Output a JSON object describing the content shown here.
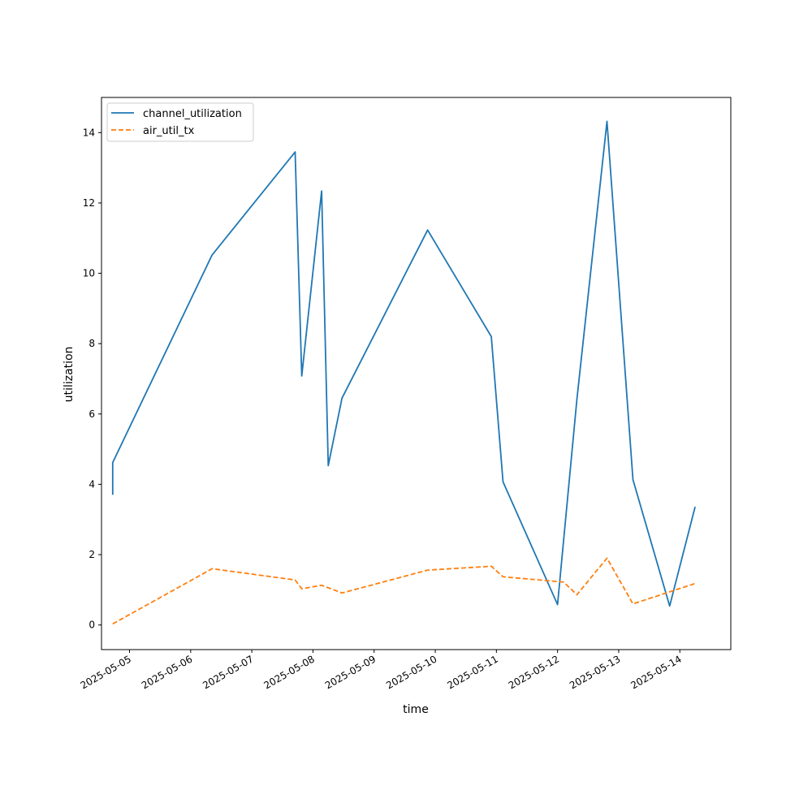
{
  "chart_data": {
    "type": "line",
    "xlabel": "time",
    "ylabel": "utilization",
    "x_tick_labels": [
      "2025-05-05",
      "2025-05-06",
      "2025-05-07",
      "2025-05-08",
      "2025-05-09",
      "2025-05-10",
      "2025-05-11",
      "2025-05-12",
      "2025-05-13",
      "2025-05-14"
    ],
    "y_tick_labels": [
      "0",
      "2",
      "4",
      "6",
      "8",
      "10",
      "12",
      "14"
    ],
    "xlim": [
      "2025-05-04T13:00",
      "2025-05-14T20:00"
    ],
    "ylim": [
      -0.7,
      15.0
    ],
    "grid": false,
    "legend_position": "top-left",
    "series": [
      {
        "name": "channel_utilization",
        "color": "#1f77b4",
        "dash": "solid",
        "points": [
          {
            "x": "2025-05-04T17:24",
            "y": 3.7
          },
          {
            "x": "2025-05-04T17:24",
            "y": 4.62
          },
          {
            "x": "2025-05-06T08:24",
            "y": 10.52
          },
          {
            "x": "2025-05-07T17:00",
            "y": 13.45
          },
          {
            "x": "2025-05-07T19:36",
            "y": 7.08
          },
          {
            "x": "2025-05-08T03:24",
            "y": 12.34
          },
          {
            "x": "2025-05-08T06:00",
            "y": 4.53
          },
          {
            "x": "2025-05-08T11:24",
            "y": 6.45
          },
          {
            "x": "2025-05-09T21:00",
            "y": 11.23
          },
          {
            "x": "2025-05-10T22:00",
            "y": 8.2
          },
          {
            "x": "2025-05-11T02:36",
            "y": 4.07
          },
          {
            "x": "2025-05-12T00:00",
            "y": 0.58
          },
          {
            "x": "2025-05-12T07:36",
            "y": 6.42
          },
          {
            "x": "2025-05-12T19:24",
            "y": 14.32
          },
          {
            "x": "2025-05-13T05:36",
            "y": 4.13
          },
          {
            "x": "2025-05-13T20:00",
            "y": 0.54
          },
          {
            "x": "2025-05-14T06:00",
            "y": 3.36
          }
        ]
      },
      {
        "name": "air_util_tx",
        "color": "#ff7f0e",
        "dash": "dashed",
        "points": [
          {
            "x": "2025-05-04T17:24",
            "y": 0.03
          },
          {
            "x": "2025-05-06T08:24",
            "y": 1.6
          },
          {
            "x": "2025-05-07T17:00",
            "y": 1.28
          },
          {
            "x": "2025-05-07T19:36",
            "y": 1.03
          },
          {
            "x": "2025-05-08T03:24",
            "y": 1.13
          },
          {
            "x": "2025-05-08T11:24",
            "y": 0.91
          },
          {
            "x": "2025-05-09T21:00",
            "y": 1.56
          },
          {
            "x": "2025-05-10T22:00",
            "y": 1.67
          },
          {
            "x": "2025-05-11T02:36",
            "y": 1.37
          },
          {
            "x": "2025-05-12T02:24",
            "y": 1.22
          },
          {
            "x": "2025-05-12T07:36",
            "y": 0.86
          },
          {
            "x": "2025-05-12T19:24",
            "y": 1.9
          },
          {
            "x": "2025-05-13T05:36",
            "y": 0.6
          },
          {
            "x": "2025-05-14T06:00",
            "y": 1.18
          }
        ]
      }
    ]
  }
}
